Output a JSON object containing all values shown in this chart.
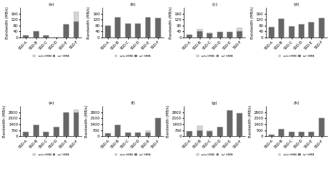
{
  "categories": [
    "SSD-A",
    "SSD-B",
    "SSD-C",
    "SSD-D",
    "SSD-E",
    "SSD-F"
  ],
  "subplots": {
    "a": {
      "title": "(a)",
      "ylim": [
        0,
        200
      ],
      "yticks": [
        0,
        40,
        80,
        120,
        160
      ],
      "ytop": 200,
      "wo_hmb": [
        15,
        42,
        12,
        0,
        90,
        105
      ],
      "w_hmb": [
        15,
        42,
        12,
        0,
        90,
        170
      ],
      "legend_labels": [
        "w/o HMB",
        "w/ HMB"
      ]
    },
    "b": {
      "title": "(b)",
      "ylim": [
        0,
        200
      ],
      "yticks": [
        0,
        40,
        80,
        120,
        160
      ],
      "ytop": 200,
      "wo_hmb": [
        80,
        135,
        95,
        95,
        135,
        128
      ],
      "w_hmb": [
        80,
        135,
        95,
        95,
        135,
        128
      ],
      "legend_labels": [
        "w/o HMB",
        "w/ HMB"
      ]
    },
    "c": {
      "title": "(c)",
      "ylim": [
        0,
        200
      ],
      "yticks": [
        0,
        40,
        80,
        120,
        160
      ],
      "ytop": 200,
      "wo_hmb": [
        20,
        42,
        28,
        38,
        38,
        43
      ],
      "w_hmb": [
        20,
        55,
        33,
        38,
        38,
        65
      ],
      "legend_labels": [
        "w/o HMB",
        "w/ HMB"
      ]
    },
    "d": {
      "title": "(d)",
      "ylim": [
        0,
        200
      ],
      "yticks": [
        0,
        40,
        80,
        120,
        160
      ],
      "ytop": 200,
      "wo_hmb": [
        70,
        125,
        73,
        90,
        100,
        128
      ],
      "w_hmb": [
        70,
        125,
        73,
        90,
        100,
        128
      ],
      "legend_labels": [
        "w/o HMB",
        "w/ HMB"
      ]
    },
    "e": {
      "title": "(e)",
      "ylim": [
        0,
        3500
      ],
      "yticks": [
        0,
        700,
        1400,
        2100,
        2800
      ],
      "ytop": 3500,
      "wo_hmb": [
        500,
        1350,
        500,
        1100,
        2800,
        2800
      ],
      "w_hmb": [
        500,
        1350,
        500,
        1100,
        2800,
        3100
      ],
      "legend_labels": [
        "w/o HMB",
        "w/ HMB"
      ]
    },
    "f": {
      "title": "(f)",
      "ylim": [
        0,
        3500
      ],
      "yticks": [
        0,
        700,
        1400,
        2100,
        2800
      ],
      "ytop": 3500,
      "wo_hmb": [
        350,
        1350,
        420,
        420,
        450,
        2100
      ],
      "w_hmb": [
        350,
        1350,
        420,
        420,
        700,
        2100
      ],
      "legend_labels": [
        "w/o HMB",
        "w/ HMB"
      ]
    },
    "g": {
      "title": "(g)",
      "ylim": [
        0,
        3500
      ],
      "yticks": [
        0,
        700,
        1400,
        2100,
        2800
      ],
      "ytop": 3500,
      "wo_hmb": [
        600,
        700,
        570,
        1100,
        3000,
        2700
      ],
      "w_hmb": [
        600,
        1200,
        640,
        1100,
        3000,
        2700
      ],
      "legend_labels": [
        "w/o HMB",
        "w/ HMB"
      ]
    },
    "h": {
      "title": "(h)",
      "ylim": [
        0,
        3500
      ],
      "yticks": [
        0,
        700,
        1400,
        2100,
        2800
      ],
      "ytop": 3500,
      "wo_hmb": [
        200,
        800,
        480,
        550,
        550,
        2100
      ],
      "w_hmb": [
        200,
        800,
        480,
        550,
        550,
        2100
      ],
      "legend_labels": [
        "w/o HMB",
        "w/ HMB"
      ]
    }
  },
  "color_wo": "#d4d4d4",
  "color_w": "#666666",
  "bar_width": 0.55,
  "subplot_order": [
    "a",
    "b",
    "c",
    "d",
    "e",
    "f",
    "g",
    "h"
  ],
  "figsize": [
    4.74,
    2.65
  ],
  "dpi": 100
}
